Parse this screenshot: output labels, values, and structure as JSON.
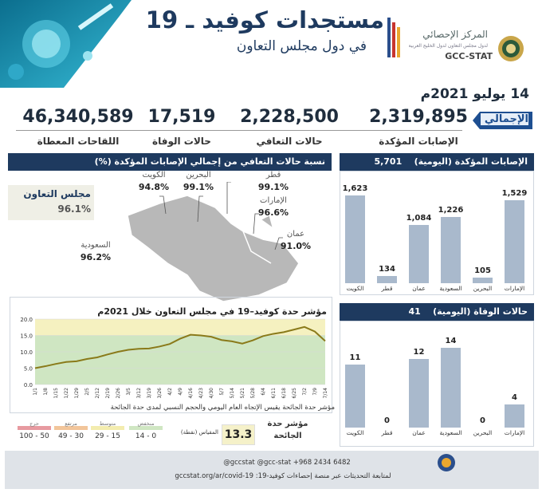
{
  "header": {
    "title": "مستجدات كوفيد ـ 19",
    "subtitle": "في دول مجلس التعاون",
    "org_name": "المركز الإحصائي",
    "org_subtitle": "لدول مجلس التعاون لدول الخليج العربية",
    "org_code": "GCC-STAT"
  },
  "date": "14 يوليو 2021م",
  "totals": {
    "label": "الإجمالي",
    "items": [
      {
        "label": "الإصابات المؤكدة",
        "value": "2,319,895"
      },
      {
        "label": "حالات التعافي",
        "value": "2,228,500"
      },
      {
        "label": "حالات الوفاة",
        "value": "17,519"
      },
      {
        "label": "اللقاحات المعطاة",
        "value": "46,340,589"
      }
    ]
  },
  "recovery": {
    "title": "نسبة حالات التعافي من إجمالي الإصابات المؤكدة (%)",
    "gcc_label": "مجلس التعاون",
    "gcc_value": "96.1%",
    "countries": [
      {
        "name": "الكويت",
        "value": "94.8%"
      },
      {
        "name": "البحرين",
        "value": "99.1%"
      },
      {
        "name": "قطر",
        "value": "99.1%"
      },
      {
        "name": "الإمارات",
        "value": "96.6%"
      },
      {
        "name": "عمان",
        "value": "91.0%"
      },
      {
        "name": "السعودية",
        "value": "96.2%"
      }
    ]
  },
  "daily_cases": {
    "title": "الإصابات المؤكدة (اليومية)",
    "total": "5,701"
  },
  "daily_deaths": {
    "title": "حالات الوفاة (اليومية)",
    "total": "41"
  },
  "severity_index": {
    "title": "مؤشر حدة كوفيد–19 في مجلس التعاون خلال 2021م",
    "note": "مؤشر حدة الجائحة يقيس الإتجاه العام اليومي والحجم النسبي لمدى حدة الجائحة",
    "current_label": "مؤشر حدة\nالجائحة",
    "current_value": "13.3",
    "scale_label": "المقياس (نقطة)",
    "scale": [
      {
        "name": "حرج",
        "range": "100 - 50",
        "color": "#e79aa0"
      },
      {
        "name": "مرتفع",
        "range": "49 - 30",
        "color": "#f2c59a"
      },
      {
        "name": "متوسط",
        "range": "29 - 15",
        "color": "#f3ecae"
      },
      {
        "name": "منخفض",
        "range": "14 - 0",
        "color": "#cfe6c2"
      }
    ]
  },
  "footer": {
    "social": "@gccstat   @gcc-stat   +968 2434 6482",
    "text": "لمتابعة التحديثات عبر منصة إحصاءات كوفيد-19: gccstat.org/ar/covid-19"
  },
  "chart_data": [
    {
      "type": "bar",
      "title": "الإصابات المؤكدة (اليومية)",
      "categories": [
        "الكويت",
        "قطر",
        "عمان",
        "السعودية",
        "البحرين",
        "الإمارات"
      ],
      "values": [
        1623,
        134,
        1084,
        1226,
        105,
        1529
      ],
      "color": "#a9b9cc"
    },
    {
      "type": "bar",
      "title": "حالات الوفاة (اليومية)",
      "categories": [
        "الكويت",
        "قطر",
        "عمان",
        "السعودية",
        "البحرين",
        "الإمارات"
      ],
      "values": [
        11,
        0,
        12,
        14,
        0,
        4
      ],
      "color": "#a9b9cc"
    },
    {
      "type": "line",
      "title": "مؤشر حدة كوفيد–19 في مجلس التعاون خلال 2021م",
      "x": [
        "1/1",
        "1/8",
        "1/15",
        "1/22",
        "1/29",
        "2/5",
        "2/12",
        "2/19",
        "2/26",
        "3/5",
        "3/12",
        "3/19",
        "3/26",
        "4/2",
        "4/9",
        "4/16",
        "4/23",
        "4/30",
        "5/7",
        "5/14",
        "5/21",
        "5/28",
        "6/4",
        "6/11",
        "6/18",
        "6/25",
        "7/2",
        "7/9",
        "7/14"
      ],
      "series": [
        {
          "values": [
            5.0,
            5.6,
            6.3,
            6.9,
            7.1,
            7.8,
            8.3,
            9.2,
            10.0,
            10.6,
            10.9,
            11.0,
            11.6,
            12.4,
            14.0,
            15.2,
            15.0,
            14.6,
            13.6,
            13.2,
            12.5,
            13.5,
            14.8,
            15.5,
            16.0,
            16.8,
            17.6,
            16.2,
            13.3
          ],
          "color": "#8a7a1a"
        }
      ],
      "ylim": [
        0,
        20
      ],
      "yticks": [
        "0.0",
        "5.0",
        "10.0",
        "15.0",
        "20.0"
      ],
      "bands": [
        {
          "from": 0,
          "to": 15,
          "color": "#cfe6c2"
        },
        {
          "from": 15,
          "to": 20,
          "color": "#f5f1c0"
        }
      ]
    }
  ]
}
